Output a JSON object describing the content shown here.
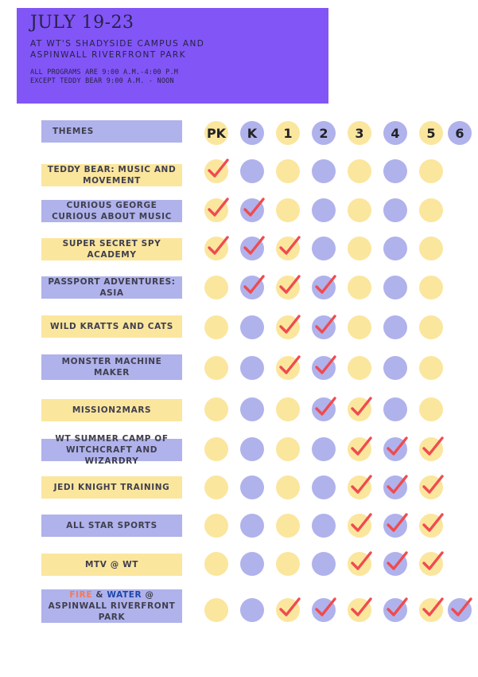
{
  "header": {
    "date": "JULY 19-23",
    "location_line1": "AT WT'S SHADYSIDE CAMPUS AND",
    "location_line2": "ASPINWALL RIVERFRONT PARK",
    "note_line1": "ALL PROGRAMS ARE 9:00 A.M.-4:00 P.M",
    "note_line2": "EXCEPT TEDDY BEAR 9:00 A.M. - NOON"
  },
  "themes_label": "THEMES",
  "grades": [
    "PK",
    "K",
    "1",
    "2",
    "3",
    "4",
    "5",
    "6"
  ],
  "themes": [
    {
      "name": "TEDDY BEAR: MUSIC AND MOVEMENT",
      "checks": [
        true,
        false,
        false,
        false,
        false,
        false,
        false,
        false
      ]
    },
    {
      "name": "CURIOUS GEORGE CURIOUS ABOUT MUSIC",
      "checks": [
        true,
        true,
        false,
        false,
        false,
        false,
        false,
        false
      ]
    },
    {
      "name": "SUPER SECRET SPY ACADEMY",
      "checks": [
        true,
        true,
        true,
        false,
        false,
        false,
        false,
        false
      ]
    },
    {
      "name": "PASSPORT ADVENTURES: ASIA",
      "checks": [
        false,
        true,
        true,
        true,
        false,
        false,
        false,
        false
      ]
    },
    {
      "name": "WILD KRATTS AND CATS",
      "checks": [
        false,
        false,
        true,
        true,
        false,
        false,
        false,
        false
      ]
    },
    {
      "name": "MONSTER MACHINE MAKER",
      "checks": [
        false,
        false,
        true,
        true,
        false,
        false,
        false,
        false
      ]
    },
    {
      "name": "MISSION2MARS",
      "checks": [
        false,
        false,
        false,
        true,
        true,
        false,
        false,
        false
      ]
    },
    {
      "name": "WT SUMMER CAMP OF WITCHCRAFT AND WIZARDRY",
      "checks": [
        false,
        false,
        false,
        false,
        true,
        true,
        true,
        false
      ]
    },
    {
      "name": "JEDI KNIGHT TRAINING",
      "checks": [
        false,
        false,
        false,
        false,
        true,
        true,
        true,
        false
      ]
    },
    {
      "name": "ALL STAR SPORTS",
      "checks": [
        false,
        false,
        false,
        false,
        true,
        true,
        true,
        false
      ]
    },
    {
      "name": "MTV @ WT",
      "checks": [
        false,
        false,
        false,
        false,
        true,
        true,
        true,
        false
      ]
    },
    {
      "name_parts": {
        "fire": "FIRE",
        "amp": " & ",
        "water": "WATER",
        "rest": " @ ASPINWALL RIVERFRONT PARK"
      },
      "checks": [
        false,
        false,
        true,
        true,
        true,
        true,
        true,
        true
      ]
    }
  ],
  "colors": {
    "header_bg": "#8255f7",
    "yellow": "#fbe69e",
    "purple": "#b0b2ec",
    "check": "#ef4b4f",
    "fire": "#f27a54",
    "water": "#1b46a8"
  }
}
